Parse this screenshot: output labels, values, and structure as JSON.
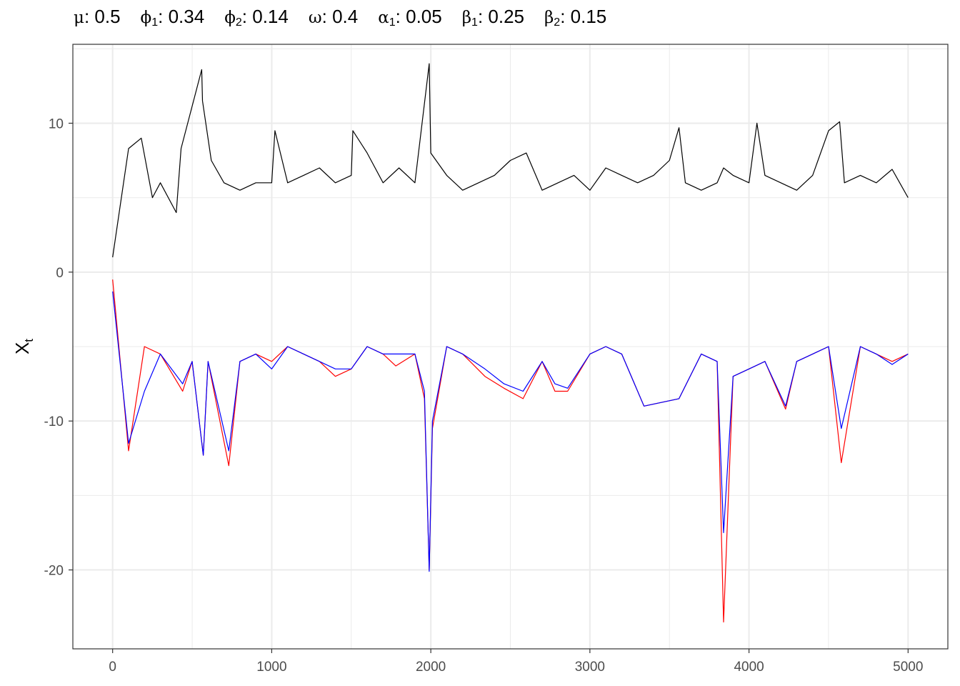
{
  "title_params": [
    {
      "symbol": "μ",
      "sub": "",
      "value": "0.5"
    },
    {
      "symbol": "ϕ",
      "sub": "1",
      "value": "0.34"
    },
    {
      "symbol": "ϕ",
      "sub": "2",
      "value": "0.14"
    },
    {
      "symbol": "ω",
      "sub": "",
      "value": "0.4"
    },
    {
      "symbol": "α",
      "sub": "1",
      "value": "0.05"
    },
    {
      "symbol": "β",
      "sub": "1",
      "value": "0.25"
    },
    {
      "symbol": "β",
      "sub": "2",
      "value": "0.15"
    }
  ],
  "chart_data": {
    "type": "line",
    "title": "μ: 0.5   ϕ1: 0.34   ϕ2: 0.14   ω: 0.4   α1: 0.05   β1: 0.25   β2: 0.15",
    "xlabel": "",
    "ylabel": "X",
    "ylabel_sub": "t",
    "xlim": [
      -250,
      5250
    ],
    "ylim": [
      -25.3,
      15.3
    ],
    "x_ticks": [
      0,
      1000,
      2000,
      3000,
      4000,
      5000
    ],
    "y_ticks": [
      10,
      0,
      -10,
      -20
    ],
    "y_tick_labels": [
      "10",
      "0",
      "-10",
      "-20"
    ],
    "grid": true,
    "theme": "bw",
    "series": [
      {
        "color": "#000000",
        "x": [
          0,
          100,
          180,
          250,
          300,
          400,
          430,
          560,
          565,
          620,
          700,
          800,
          900,
          1000,
          1020,
          1100,
          1200,
          1300,
          1400,
          1500,
          1510,
          1600,
          1700,
          1800,
          1900,
          1990,
          2000,
          2100,
          2200,
          2300,
          2400,
          2500,
          2600,
          2700,
          2800,
          2900,
          3000,
          3100,
          3200,
          3300,
          3400,
          3500,
          3560,
          3600,
          3700,
          3800,
          3840,
          3900,
          4000,
          4050,
          4100,
          4200,
          4300,
          4400,
          4500,
          4570,
          4600,
          4700,
          4800,
          4900,
          5000
        ],
        "y": [
          1.0,
          8.3,
          9.0,
          5.0,
          6.0,
          4.0,
          8.3,
          13.6,
          11.5,
          7.5,
          6.0,
          5.5,
          6.0,
          6.0,
          9.5,
          6.0,
          6.5,
          7.0,
          6.0,
          6.5,
          9.5,
          8.0,
          6.0,
          7.0,
          6.0,
          14.0,
          8.0,
          6.5,
          5.5,
          6.0,
          6.5,
          7.5,
          8.0,
          5.5,
          6.0,
          6.5,
          5.5,
          7.0,
          6.5,
          6.0,
          6.5,
          7.5,
          9.7,
          6.0,
          5.5,
          6.0,
          7.0,
          6.5,
          6.0,
          10.0,
          6.5,
          6.0,
          5.5,
          6.5,
          9.5,
          10.1,
          6.0,
          6.5,
          6.0,
          6.9,
          5.0
        ]
      },
      {
        "color": "#ff0000",
        "x": [
          0,
          100,
          200,
          300,
          440,
          500,
          570,
          600,
          730,
          800,
          900,
          1000,
          1100,
          1200,
          1300,
          1400,
          1500,
          1600,
          1700,
          1780,
          1900,
          1960,
          1990,
          2010,
          2100,
          2200,
          2340,
          2460,
          2580,
          2700,
          2780,
          2860,
          3000,
          3100,
          3200,
          3340,
          3560,
          3700,
          3800,
          3840,
          3900,
          4000,
          4100,
          4230,
          4300,
          4400,
          4500,
          4580,
          4700,
          4800,
          4900,
          5000
        ],
        "y": [
          -0.5,
          -12.0,
          -5.0,
          -5.5,
          -8.0,
          -6.0,
          -12.3,
          -6.0,
          -13.0,
          -6.0,
          -5.5,
          -6.0,
          -5.0,
          -5.5,
          -6.0,
          -7.0,
          -6.5,
          -5.0,
          -5.5,
          -6.3,
          -5.5,
          -8.5,
          -20.0,
          -10.5,
          -5.0,
          -5.5,
          -7.0,
          -7.8,
          -8.5,
          -6.0,
          -8.0,
          -8.0,
          -5.5,
          -5.0,
          -5.5,
          -9.0,
          -8.5,
          -5.5,
          -6.0,
          -23.5,
          -7.0,
          -6.5,
          -6.0,
          -9.2,
          -6.0,
          -5.5,
          -5.0,
          -12.8,
          -5.0,
          -5.5,
          -6.0,
          -5.5
        ]
      },
      {
        "color": "#0000ff",
        "x": [
          0,
          100,
          200,
          300,
          440,
          500,
          570,
          600,
          730,
          800,
          900,
          1000,
          1100,
          1200,
          1300,
          1400,
          1500,
          1600,
          1700,
          1780,
          1900,
          1960,
          1990,
          2010,
          2100,
          2200,
          2340,
          2460,
          2580,
          2700,
          2780,
          2860,
          3000,
          3100,
          3200,
          3340,
          3560,
          3700,
          3800,
          3840,
          3900,
          4000,
          4100,
          4230,
          4300,
          4400,
          4500,
          4580,
          4700,
          4800,
          4900,
          5000
        ],
        "y": [
          -1.3,
          -11.5,
          -8.0,
          -5.5,
          -7.5,
          -6.0,
          -12.3,
          -6.0,
          -12.0,
          -6.0,
          -5.5,
          -6.5,
          -5.0,
          -5.5,
          -6.0,
          -6.5,
          -6.5,
          -5.0,
          -5.5,
          -5.5,
          -5.5,
          -8.0,
          -20.1,
          -10.0,
          -5.0,
          -5.5,
          -6.5,
          -7.5,
          -8.0,
          -6.0,
          -7.5,
          -7.8,
          -5.5,
          -5.0,
          -5.5,
          -9.0,
          -8.5,
          -5.5,
          -6.0,
          -17.5,
          -7.0,
          -6.5,
          -6.0,
          -9.0,
          -6.0,
          -5.5,
          -5.0,
          -10.5,
          -5.0,
          -5.5,
          -6.2,
          -5.5
        ]
      }
    ]
  }
}
